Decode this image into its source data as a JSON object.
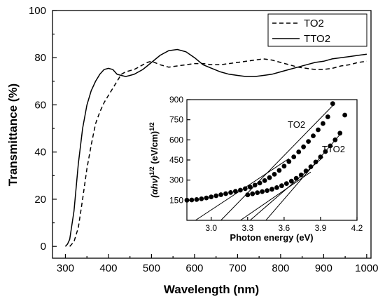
{
  "chart_data": [
    {
      "type": "line",
      "xlabel": "Wavelength (nm)",
      "ylabel": "Transmittance (%)",
      "xlim": [
        270,
        1010
      ],
      "ylim": [
        -5,
        100
      ],
      "xticks": [
        300,
        400,
        500,
        600,
        700,
        800,
        900,
        1000
      ],
      "yticks": [
        0,
        20,
        40,
        60,
        80,
        100
      ],
      "legend": "top-right",
      "grid": false,
      "series": [
        {
          "name": "TO2",
          "style": "dashed",
          "x": [
            310,
            320,
            330,
            340,
            350,
            360,
            370,
            380,
            390,
            400,
            410,
            420,
            430,
            440,
            450,
            460,
            470,
            480,
            490,
            500,
            520,
            540,
            560,
            580,
            600,
            620,
            640,
            660,
            680,
            700,
            720,
            740,
            760,
            780,
            800,
            820,
            840,
            860,
            880,
            900,
            920,
            940,
            960,
            980,
            1000
          ],
          "y": [
            0,
            2,
            8,
            20,
            33,
            43,
            52,
            57,
            61,
            64,
            67,
            70,
            73,
            74,
            74.5,
            75,
            76,
            77,
            78,
            78.5,
            77,
            76,
            76.5,
            77,
            77.5,
            77.5,
            77,
            77,
            77.5,
            78,
            78.5,
            79,
            79.5,
            79,
            78,
            77,
            76,
            75.5,
            75,
            75,
            75.5,
            76.5,
            77,
            78,
            78.5
          ]
        },
        {
          "name": "TTO2",
          "style": "solid",
          "x": [
            300,
            305,
            310,
            320,
            330,
            340,
            350,
            360,
            370,
            380,
            390,
            400,
            410,
            420,
            430,
            440,
            450,
            460,
            470,
            480,
            490,
            500,
            520,
            540,
            560,
            580,
            600,
            620,
            640,
            660,
            680,
            700,
            720,
            740,
            760,
            780,
            800,
            820,
            840,
            860,
            880,
            900,
            920,
            940,
            960,
            980,
            1000
          ],
          "y": [
            0,
            1,
            3,
            15,
            35,
            50,
            60,
            66,
            70,
            73,
            75,
            75.5,
            75,
            73,
            72.5,
            72,
            72.5,
            73,
            74,
            75,
            76.5,
            78,
            81,
            83,
            83.5,
            82.5,
            80,
            77,
            75.5,
            74,
            73,
            72.5,
            72,
            72,
            72.5,
            73,
            74,
            75,
            76,
            77,
            78,
            78.5,
            79.5,
            80,
            80.5,
            81,
            81.5
          ]
        }
      ]
    },
    {
      "type": "scatter",
      "xlabel": "Photon energy (eV)",
      "ylabel": "(αhν)",
      "ylabel_sup": "1/2",
      "ylabel_unit": " (eV/cm)",
      "ylabel_unit_sup": "1/2",
      "xlim": [
        2.8,
        4.2
      ],
      "ylim": [
        0,
        900
      ],
      "xticks": [
        3.0,
        3.3,
        3.6,
        3.9,
        4.2
      ],
      "xtick_labels": [
        "3.0",
        "3.3",
        "3.6",
        "3.9",
        "4.2"
      ],
      "yticks": [
        150,
        300,
        450,
        600,
        750,
        900
      ],
      "series": [
        {
          "name": "TO2",
          "x": [
            2.8,
            2.84,
            2.88,
            2.92,
            2.96,
            3.0,
            3.04,
            3.08,
            3.12,
            3.16,
            3.2,
            3.24,
            3.28,
            3.32,
            3.36,
            3.4,
            3.44,
            3.48,
            3.52,
            3.56,
            3.6,
            3.64,
            3.68,
            3.72,
            3.76,
            3.8,
            3.84,
            3.88,
            3.92,
            3.96,
            4.0
          ],
          "y": [
            150,
            152,
            155,
            160,
            167,
            175,
            183,
            191,
            199,
            207,
            216,
            225,
            236,
            248,
            262,
            278,
            296,
            318,
            343,
            372,
            404,
            438,
            473,
            510,
            548,
            588,
            630,
            675,
            722,
            772,
            870
          ]
        },
        {
          "name": "TTO2",
          "x": [
            3.3,
            3.34,
            3.38,
            3.42,
            3.46,
            3.5,
            3.54,
            3.58,
            3.62,
            3.66,
            3.7,
            3.74,
            3.78,
            3.82,
            3.86,
            3.9,
            3.94,
            3.98,
            4.02,
            4.06,
            4.1
          ],
          "y": [
            190,
            198,
            206,
            214,
            222,
            232,
            244,
            258,
            274,
            292,
            313,
            338,
            368,
            400,
            435,
            473,
            513,
            555,
            600,
            650,
            785
          ]
        }
      ],
      "fits": [
        {
          "x": [
            2.87,
            3.64
          ],
          "y": [
            0,
            460
          ]
        },
        {
          "x": [
            3.08,
            4.0
          ],
          "y": [
            0,
            855
          ]
        },
        {
          "x": [
            3.24,
            3.82
          ],
          "y": [
            0,
            360
          ]
        },
        {
          "x": [
            3.32,
            3.92
          ],
          "y": [
            0,
            470
          ]
        },
        {
          "x": [
            3.45,
            4.06
          ],
          "y": [
            0,
            640
          ]
        }
      ]
    }
  ]
}
